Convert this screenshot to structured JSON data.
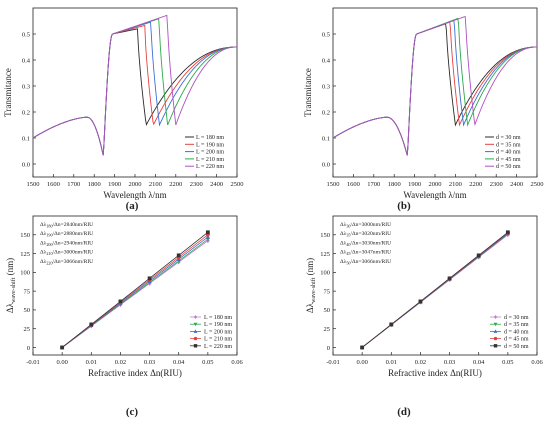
{
  "figure": {
    "panel_labels": [
      "(a)",
      "(b)",
      "(c)",
      "(d)"
    ]
  },
  "chart_data": [
    {
      "panel": "(a)",
      "type": "line",
      "xlabel": "Wavelength λ/nm",
      "ylabel": "Transmitance",
      "xlim": [
        1500,
        2500
      ],
      "ylim": [
        -0.05,
        0.6
      ],
      "xticks": [
        1500,
        1600,
        1700,
        1800,
        1900,
        2000,
        2100,
        2200,
        2300,
        2400,
        2500
      ],
      "yticks": [
        0.0,
        0.1,
        0.2,
        0.3,
        0.4,
        0.5
      ],
      "ytick_labels": [
        "0.0",
        "0.1",
        "0.2",
        "0.3",
        "0.4",
        "0.5"
      ],
      "legend_position": "bottom-right",
      "model": {
        "dip1": 1845,
        "min1": 0.03,
        "peak_shift": 42,
        "tail_end": 0.45,
        "peak_max_base": 0.52,
        "peak_max_step": 0.013
      },
      "series": [
        {
          "name": "L = 180 nm",
          "color": "#2b2b2b",
          "dip2": 2055
        },
        {
          "name": "L = 190 nm",
          "color": "#e8413c",
          "dip2": 2090
        },
        {
          "name": "L = 200 nm",
          "color": "#3b6fd6",
          "dip2": 2120
        },
        {
          "name": "L = 210 nm",
          "color": "#2ea84a",
          "dip2": 2160
        },
        {
          "name": "L = 220 nm",
          "color": "#b04fc4",
          "dip2": 2200
        }
      ]
    },
    {
      "panel": "(b)",
      "type": "line",
      "xlabel": "Wavelength λ/nm",
      "ylabel": "Transmitance",
      "xlim": [
        1500,
        2500
      ],
      "ylim": [
        -0.05,
        0.6
      ],
      "xticks": [
        1500,
        1600,
        1700,
        1800,
        1900,
        2000,
        2100,
        2200,
        2300,
        2400,
        2500
      ],
      "yticks": [
        0.0,
        0.1,
        0.2,
        0.3,
        0.4,
        0.5
      ],
      "ytick_labels": [
        "0.0",
        "0.1",
        "0.2",
        "0.3",
        "0.4",
        "0.5"
      ],
      "legend_position": "bottom-right",
      "model": {
        "dip1": 1865,
        "min1": 0.03,
        "peak_shift": 45,
        "tail_end": 0.45,
        "peak_max_base": 0.54,
        "peak_max_step": 0.007
      },
      "series": [
        {
          "name": "d = 30 nm",
          "color": "#2b2b2b",
          "dip2": 2100
        },
        {
          "name": "d = 35 nm",
          "color": "#e8413c",
          "dip2": 2120
        },
        {
          "name": "d = 40 nm",
          "color": "#3b6fd6",
          "dip2": 2140
        },
        {
          "name": "d = 45 nm",
          "color": "#2ea84a",
          "dip2": 2160
        },
        {
          "name": "d = 50 nm",
          "color": "#b04fc4",
          "dip2": 2195
        }
      ]
    },
    {
      "panel": "(c)",
      "type": "line",
      "xlabel": "Refractive index Δn(RIU)",
      "ylabel": "Δλwave-shift (nm)",
      "ylabel_main": "Δλ",
      "ylabel_sub": "wave-shift",
      "ylabel_tail": " (nm)",
      "xlim": [
        -0.01,
        0.06
      ],
      "ylim": [
        -10,
        175
      ],
      "xticks": [
        -0.01,
        0.0,
        0.01,
        0.02,
        0.03,
        0.04,
        0.05,
        0.06
      ],
      "xtick_labels": [
        "-0.01",
        "0.00",
        "0.01",
        "0.02",
        "0.03",
        "0.04",
        "0.05",
        "0.06"
      ],
      "yticks": [
        0,
        25,
        50,
        75,
        100,
        125,
        150
      ],
      "ytick_labels": [
        "0",
        "25",
        "50",
        "75",
        "100",
        "125",
        "150"
      ],
      "legend_position": "bottom-right",
      "x": [
        0,
        0.01,
        0.02,
        0.03,
        0.04,
        0.05
      ],
      "annotations": [
        {
          "main": "Δλ",
          "sub": "180",
          "tail": "/Δn=2840nm/RIU"
        },
        {
          "main": "Δλ",
          "sub": "190",
          "tail": "/Δn=2880nm/RIU"
        },
        {
          "main": "Δλ",
          "sub": "200",
          "tail": "/Δn=2940nm/RIU"
        },
        {
          "main": "Δλ",
          "sub": "210",
          "tail": "/Δn=3000nm/RIU"
        },
        {
          "main": "Δλ",
          "sub": "220",
          "tail": "/Δn=3066nm/RIU"
        }
      ],
      "series": [
        {
          "name": "L = 180 nm",
          "color": "#c77dd6",
          "marker": "diamond",
          "values": [
            0,
            28.4,
            56.8,
            85.2,
            113.6,
            142.0
          ]
        },
        {
          "name": "L = 190 nm",
          "color": "#2ea84a",
          "marker": "triangle-down",
          "values": [
            0,
            28.8,
            57.6,
            86.4,
            115.2,
            144.0
          ]
        },
        {
          "name": "L = 200 nm",
          "color": "#3b6fd6",
          "marker": "triangle-up",
          "values": [
            0,
            29.4,
            58.8,
            88.2,
            117.6,
            147.0
          ]
        },
        {
          "name": "L = 210 nm",
          "color": "#e8413c",
          "marker": "circle",
          "values": [
            0,
            30.0,
            60.0,
            90.0,
            120.0,
            150.0
          ]
        },
        {
          "name": "L = 220 nm",
          "color": "#333333",
          "marker": "square",
          "values": [
            0,
            30.7,
            61.3,
            92.0,
            122.6,
            153.3
          ]
        }
      ]
    },
    {
      "panel": "(d)",
      "type": "line",
      "xlabel": "Refractive index Δn(RIU)",
      "ylabel": "Δλwave-shift (nm)",
      "ylabel_main": "Δλ",
      "ylabel_sub": "wave-shift",
      "ylabel_tail": " (nm)",
      "xlim": [
        -0.01,
        0.06
      ],
      "ylim": [
        -10,
        175
      ],
      "xticks": [
        -0.01,
        0.0,
        0.01,
        0.02,
        0.03,
        0.04,
        0.05,
        0.06
      ],
      "xtick_labels": [
        "-0.01",
        "0.00",
        "0.01",
        "0.02",
        "0.03",
        "0.04",
        "0.05",
        "0.06"
      ],
      "yticks": [
        0,
        25,
        50,
        75,
        100,
        125,
        150
      ],
      "ytick_labels": [
        "0",
        "25",
        "50",
        "75",
        "100",
        "125",
        "150"
      ],
      "legend_position": "bottom-right",
      "x": [
        0,
        0.01,
        0.02,
        0.03,
        0.04,
        0.05
      ],
      "annotations": [
        {
          "main": "Δλ",
          "sub": "30",
          "tail": "/Δn=3000nm/RIU"
        },
        {
          "main": "Δλ",
          "sub": "35",
          "tail": "/Δn=3020nm/RIU"
        },
        {
          "main": "Δλ",
          "sub": "40",
          "tail": "/Δn=3030nm/RIU"
        },
        {
          "main": "Δλ",
          "sub": "45",
          "tail": "/Δn=3047nm/RIU"
        },
        {
          "main": "Δλ",
          "sub": "50",
          "tail": "/Δn=3066nm/RIU"
        }
      ],
      "series": [
        {
          "name": "d = 30 nm",
          "color": "#c77dd6",
          "marker": "diamond",
          "values": [
            0,
            30.0,
            60.0,
            90.0,
            120.0,
            150.0
          ]
        },
        {
          "name": "d = 35 nm",
          "color": "#2ea84a",
          "marker": "triangle-down",
          "values": [
            0,
            30.2,
            60.4,
            90.6,
            120.8,
            151.0
          ]
        },
        {
          "name": "d = 40 nm",
          "color": "#3b6fd6",
          "marker": "triangle-up",
          "values": [
            0,
            30.3,
            60.6,
            90.9,
            121.2,
            151.5
          ]
        },
        {
          "name": "d = 45 nm",
          "color": "#e8413c",
          "marker": "circle",
          "values": [
            0,
            30.5,
            60.9,
            91.4,
            121.9,
            152.4
          ]
        },
        {
          "name": "d = 50 nm",
          "color": "#333333",
          "marker": "square",
          "values": [
            0,
            30.7,
            61.3,
            92.0,
            122.6,
            153.3
          ]
        }
      ]
    }
  ]
}
